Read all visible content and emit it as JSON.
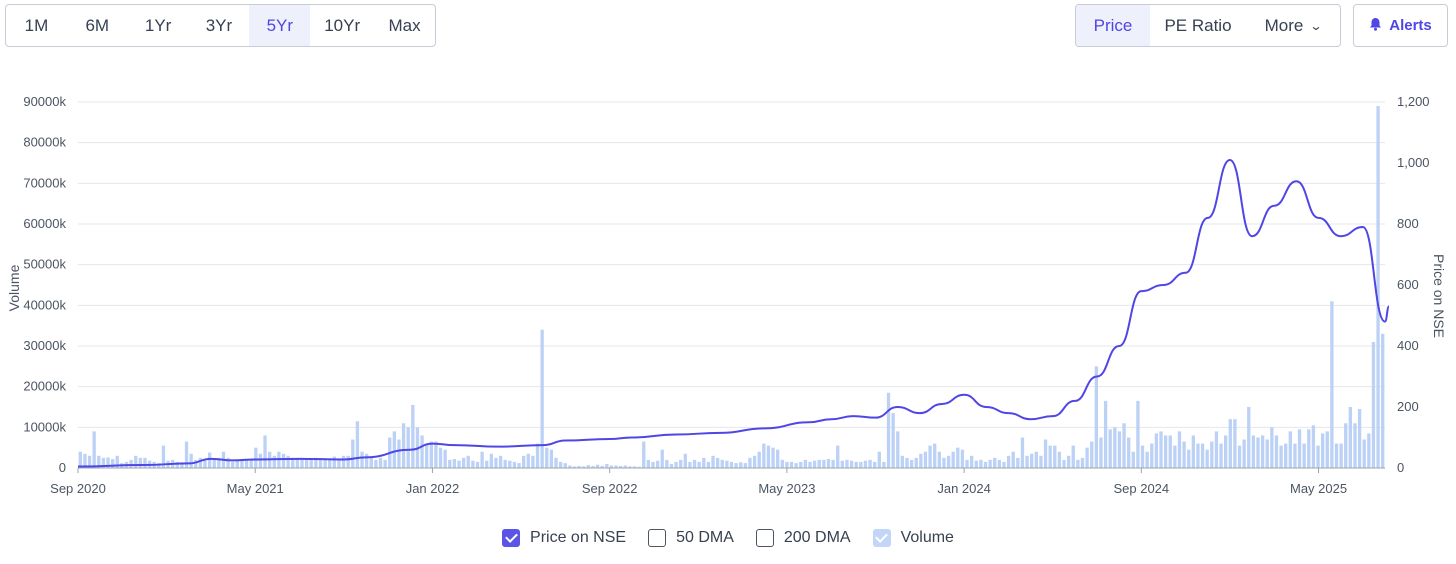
{
  "range_tabs": [
    "1M",
    "6M",
    "1Yr",
    "3Yr",
    "5Yr",
    "10Yr",
    "Max"
  ],
  "active_range": "5Yr",
  "type_tabs": {
    "price": "Price",
    "pe": "PE Ratio",
    "more": "More"
  },
  "active_type": "Price",
  "alerts_label": "Alerts",
  "colors": {
    "accent": "#4f46e5",
    "price_line": "#4f46e5",
    "volume_bar": "#bcd1f6",
    "grid": "#e5e7eb"
  },
  "legend": [
    {
      "label": "Price on NSE",
      "checked": true,
      "style": "checked"
    },
    {
      "label": "50 DMA",
      "checked": false,
      "style": "empty"
    },
    {
      "label": "200 DMA",
      "checked": false,
      "style": "empty"
    },
    {
      "label": "Volume",
      "checked": true,
      "style": "light"
    }
  ],
  "chart_data": {
    "type": "line",
    "xlabel": "",
    "y_left_label": "Volume",
    "y_right_label": "Price on NSE",
    "x_ticks": [
      "Sep 2020",
      "May 2021",
      "Jan 2022",
      "Sep 2022",
      "May 2023",
      "Jan 2024",
      "Sep 2024",
      "May 2025"
    ],
    "y_left_ticks": [
      "0",
      "10000k",
      "20000k",
      "30000k",
      "40000k",
      "50000k",
      "60000k",
      "70000k",
      "80000k",
      "90000k"
    ],
    "y_right_ticks": [
      "0",
      "200",
      "400",
      "600",
      "800",
      "1,000",
      "1,200"
    ],
    "y_left_range": [
      0,
      90000
    ],
    "y_right_range": [
      0,
      1200
    ],
    "x_range_months": [
      "Sep 2020",
      "Aug 2025"
    ],
    "grid": true,
    "series": [
      {
        "name": "Price on NSE",
        "axis": "right",
        "points": [
          [
            "Sep 2020",
            5
          ],
          [
            "Dec 2020",
            10
          ],
          [
            "Feb 2021",
            15
          ],
          [
            "Mar 2021",
            30
          ],
          [
            "Apr 2021",
            25
          ],
          [
            "May 2021",
            28
          ],
          [
            "Jul 2021",
            30
          ],
          [
            "Sep 2021",
            28
          ],
          [
            "Oct 2021",
            35
          ],
          [
            "Dec 2021",
            60
          ],
          [
            "Jan 2022",
            80
          ],
          [
            "Feb 2022",
            75
          ],
          [
            "Apr 2022",
            70
          ],
          [
            "Jun 2022",
            75
          ],
          [
            "Jul 2022",
            90
          ],
          [
            "Sep 2022",
            95
          ],
          [
            "Oct 2022",
            100
          ],
          [
            "Dec 2022",
            110
          ],
          [
            "Feb 2023",
            115
          ],
          [
            "Apr 2023",
            130
          ],
          [
            "Jun 2023",
            150
          ],
          [
            "Jul 2023",
            160
          ],
          [
            "Aug 2023",
            170
          ],
          [
            "Sep 2023",
            165
          ],
          [
            "Oct 2023",
            200
          ],
          [
            "Nov 2023",
            180
          ],
          [
            "Dec 2023",
            210
          ],
          [
            "Jan 2024",
            240
          ],
          [
            "Feb 2024",
            200
          ],
          [
            "Mar 2024",
            180
          ],
          [
            "Apr 2024",
            160
          ],
          [
            "May 2024",
            170
          ],
          [
            "Jun 2024",
            220
          ],
          [
            "Jul 2024",
            300
          ],
          [
            "Aug 2024",
            400
          ],
          [
            "Sep 2024",
            580
          ],
          [
            "Oct 2024",
            600
          ],
          [
            "Nov 2024",
            640
          ],
          [
            "Dec 2024",
            820
          ],
          [
            "Jan 2025",
            1010
          ],
          [
            "Feb 2025",
            760
          ],
          [
            "Mar 2025",
            860
          ],
          [
            "Apr 2025",
            940
          ],
          [
            "May 2025",
            820
          ],
          [
            "Jun 2025",
            760
          ],
          [
            "Jul 2025",
            790
          ],
          [
            "Aug 2025",
            480
          ],
          [
            "Aug 2025",
            530
          ]
        ]
      },
      {
        "name": "Volume",
        "axis": "left",
        "unit": "k",
        "values": [
          4000,
          3500,
          3000,
          9000,
          3000,
          2500,
          2600,
          2200,
          3000,
          1200,
          1500,
          2000,
          3000,
          2500,
          2500,
          1800,
          1500,
          1200,
          5500,
          1800,
          2000,
          1500,
          1400,
          6500,
          3500,
          2000,
          2500,
          2000,
          3800,
          2000,
          2500,
          4000,
          2500,
          1500,
          2000,
          1800,
          2000,
          2000,
          5000,
          3500,
          8000,
          4000,
          3000,
          4000,
          3500,
          3000,
          2500,
          2500,
          2500,
          2000,
          2000,
          2500,
          2000,
          2000,
          2000,
          2800,
          2000,
          3000,
          3000,
          7000,
          11500,
          4000,
          3500,
          2500,
          2000,
          2500,
          2000,
          7500,
          9000,
          7000,
          11000,
          10000,
          15500,
          10000,
          8000,
          6000,
          6500,
          6500,
          5000,
          4500,
          2000,
          2200,
          1800,
          2500,
          3000,
          1800,
          1500,
          4000,
          1800,
          3500,
          2500,
          3000,
          2000,
          1800,
          1500,
          1200,
          3000,
          3500,
          3000,
          6000,
          34000,
          5000,
          4500,
          2500,
          1500,
          1200,
          600,
          400,
          500,
          400,
          700,
          500,
          800,
          500,
          1000,
          600,
          600,
          500,
          600,
          400,
          400,
          300,
          6500,
          2000,
          1500,
          1800,
          4500,
          2000,
          1000,
          1500,
          2000,
          3500,
          1500,
          2000,
          1500,
          2500,
          1500,
          3000,
          2500,
          2000,
          1800,
          1500,
          1200,
          1400,
          1200,
          2500,
          3000,
          4000,
          6000,
          5500,
          5000,
          4500,
          2000,
          1500,
          1500,
          1200,
          1500,
          2000,
          1500,
          1800,
          2000,
          2000,
          2200,
          2000,
          5500,
          1800,
          2000,
          1800,
          1500,
          1500,
          1800,
          2000,
          1500,
          4000,
          1500,
          18500,
          13500,
          9000,
          3000,
          2500,
          2000,
          2500,
          3500,
          4000,
          5500,
          6000,
          4000,
          2500,
          3000,
          4000,
          5000,
          4500,
          2000,
          3000,
          1800,
          2000,
          1500,
          2000,
          2500,
          2000,
          1500,
          3000,
          4000,
          2500,
          7500,
          3000,
          3500,
          4000,
          3000,
          7000,
          5500,
          5500,
          4000,
          2000,
          3000,
          5500,
          2000,
          2500,
          5000,
          6500,
          25000,
          7500,
          16500,
          9500,
          10000,
          9000,
          11000,
          7500,
          4000,
          16500,
          5500,
          4000,
          6000,
          8500,
          9000,
          8000,
          8000,
          5500,
          9000,
          6500,
          4500,
          8000,
          6000,
          6000,
          4500,
          6500,
          9000,
          6000,
          8000,
          12000,
          12000,
          5500,
          7000,
          15000,
          8000,
          7500,
          8000,
          7000,
          10000,
          8000,
          5500,
          6000,
          9000,
          6000,
          9500,
          6000,
          9500,
          10500,
          5500,
          8500,
          9000,
          41000,
          6000,
          6000,
          11000,
          15000,
          11000,
          14500,
          7000,
          8500,
          31000,
          89000,
          33000
        ]
      }
    ]
  }
}
